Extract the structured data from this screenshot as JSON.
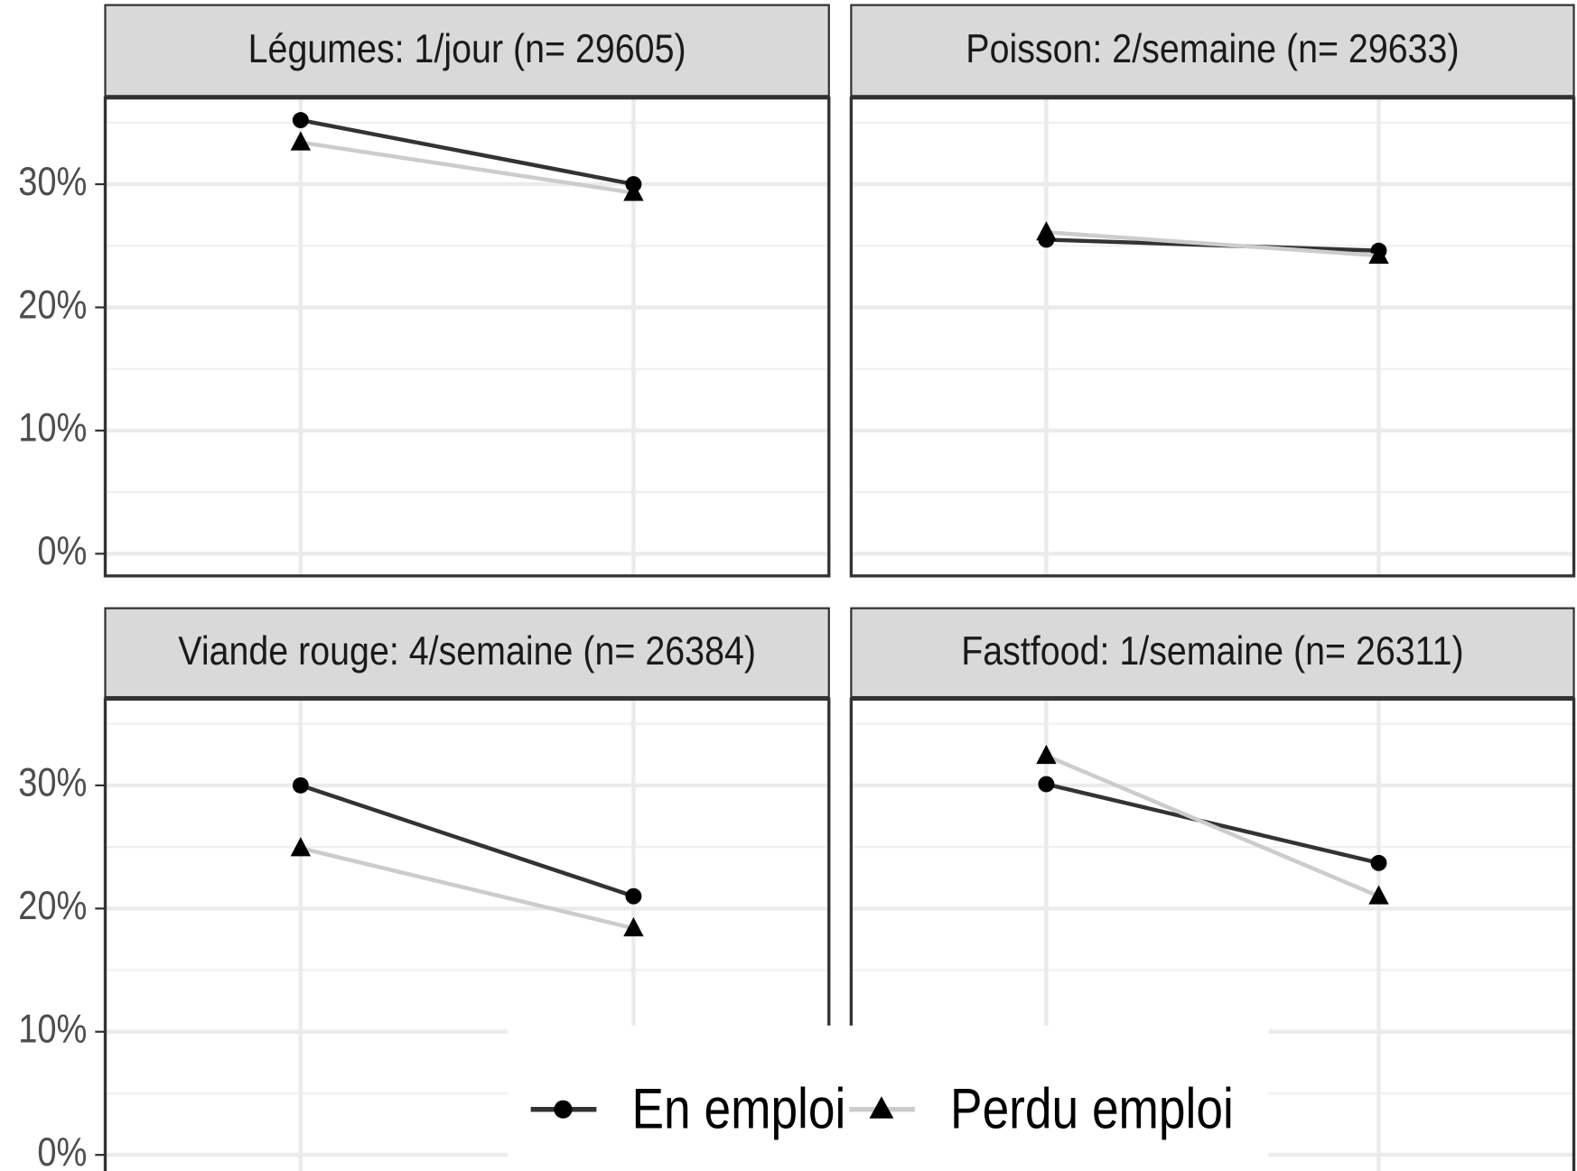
{
  "chart_data": {
    "type": "line",
    "categories": [
      null,
      null
    ],
    "ylim": [
      -1.8,
      37
    ],
    "yticks": [
      {
        "value": 0,
        "label": "0%"
      },
      {
        "value": 10,
        "label": "10%"
      },
      {
        "value": 20,
        "label": "20%"
      },
      {
        "value": 30,
        "label": "30%"
      }
    ],
    "yminor": [
      5,
      15,
      25,
      35
    ],
    "grid": true,
    "legend": "bottom",
    "series": [
      {
        "name": "En emploi",
        "color": "#333333",
        "marker": "circle"
      },
      {
        "name": "Perdu emploi",
        "color": "#cccccc",
        "marker": "triangle"
      }
    ],
    "facets": [
      {
        "title": "Légumes: 1/jour (n= 29605)",
        "series": [
          {
            "values": [
              35.2,
              30.0
            ]
          },
          {
            "values": [
              33.4,
              29.3
            ]
          }
        ]
      },
      {
        "title": "Poisson: 2/semaine (n= 29633)",
        "series": [
          {
            "values": [
              25.5,
              24.6
            ]
          },
          {
            "values": [
              26.1,
              24.2
            ]
          }
        ]
      },
      {
        "title": "Viande rouge: 4/semaine (n= 26384)",
        "series": [
          {
            "values": [
              30.0,
              21.0
            ]
          },
          {
            "values": [
              24.9,
              18.4
            ]
          }
        ]
      },
      {
        "title": "Fastfood: 1/semaine (n= 26311)",
        "series": [
          {
            "values": [
              30.1,
              23.7
            ]
          },
          {
            "values": [
              32.4,
              21.0
            ]
          }
        ]
      }
    ]
  }
}
